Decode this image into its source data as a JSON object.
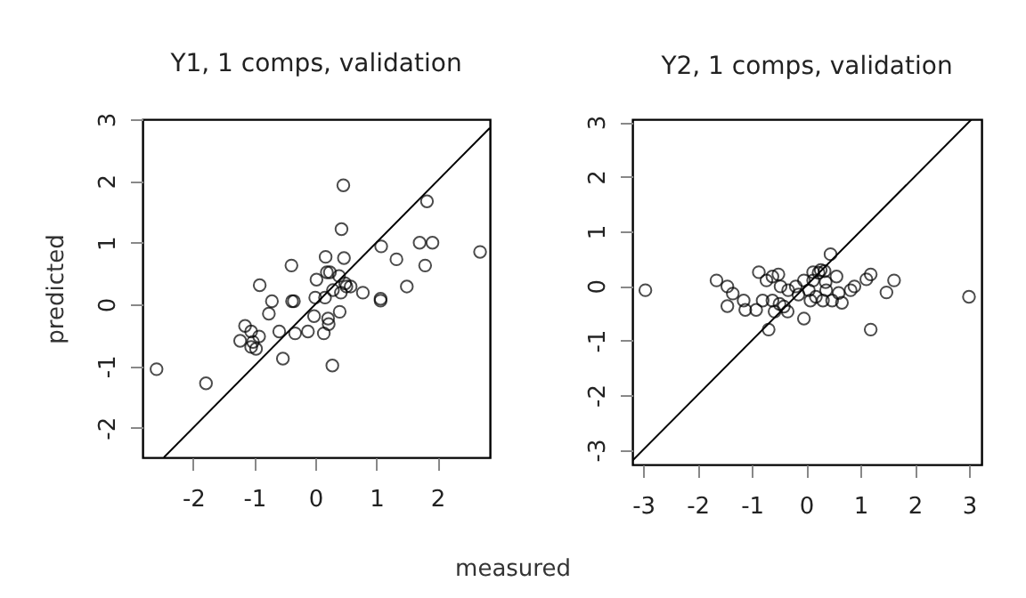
{
  "chart_data": [
    {
      "type": "scatter",
      "title": "Y1, 1 comps, validation",
      "ylabel": "predicted",
      "xlabel": "measured",
      "grid": false,
      "xlim": [
        -2.83,
        2.86
      ],
      "ylim": [
        -2.48,
        3.0
      ],
      "xticks": [
        -2,
        -1,
        0,
        1,
        2
      ],
      "yticks": [
        -2,
        -1,
        0,
        1,
        2,
        3
      ],
      "series": [
        {
          "marker": "circle",
          "color": "#000000",
          "x": [
            -2.6,
            -1.79,
            -1.23,
            -1.15,
            -1.05,
            -1.02,
            -0.97,
            -0.92,
            -1.05,
            -0.91,
            -0.76,
            -0.71,
            -0.59,
            -0.53,
            -0.39,
            -0.38,
            -0.35,
            -0.33,
            -0.12,
            -0.02,
            0.0,
            0.02,
            0.14,
            0.16,
            0.17,
            0.19,
            0.24,
            0.21,
            0.22,
            0.28,
            0.29,
            0.39,
            0.4,
            0.42,
            0.43,
            0.46,
            0.47,
            0.49,
            0.51,
            0.58,
            0.78,
            1.07,
            1.07,
            1.08,
            1.33,
            1.5,
            1.71,
            1.8,
            1.83,
            1.92,
            2.7
          ],
          "values": [
            -1.05,
            -1.28,
            -0.59,
            -0.35,
            -0.44,
            -0.61,
            -0.72,
            -0.52,
            -0.69,
            0.31,
            -0.15,
            0.05,
            -0.44,
            -0.88,
            0.63,
            0.05,
            0.05,
            -0.47,
            -0.44,
            -0.19,
            0.11,
            0.4,
            -0.47,
            0.11,
            0.77,
            0.52,
            0.52,
            -0.23,
            -0.32,
            -0.99,
            0.23,
            0.46,
            -0.12,
            0.19,
            1.22,
            1.93,
            0.75,
            0.34,
            0.29,
            0.29,
            0.19,
            0.09,
            0.06,
            0.94,
            0.73,
            0.29,
            1.0,
            0.63,
            1.67,
            1.0,
            0.85
          ]
        },
        {
          "type": "line",
          "marker": "none",
          "color": "#000000",
          "line_style": "solid",
          "x": [
            -2.48,
            2.86
          ],
          "values": [
            -2.48,
            2.86
          ]
        }
      ]
    },
    {
      "type": "scatter",
      "title": "Y2, 1 comps, validation",
      "grid": false,
      "xlim": [
        -3.2,
        3.23
      ],
      "ylim": [
        -3.27,
        3.05
      ],
      "xticks": [
        -3,
        -2,
        -1,
        0,
        1,
        2,
        3
      ],
      "yticks": [
        -3,
        -2,
        -1,
        0,
        1,
        2,
        3
      ],
      "series": [
        {
          "marker": "circle",
          "color": "#000000",
          "x": [
            -2.96,
            -1.65,
            -1.45,
            -1.35,
            -1.45,
            -1.15,
            -1.12,
            -0.92,
            -0.87,
            -0.8,
            -0.73,
            -0.69,
            -0.62,
            -0.62,
            -0.58,
            -0.51,
            -0.49,
            -0.47,
            -0.41,
            -0.34,
            -0.33,
            -0.19,
            -0.14,
            -0.04,
            -0.04,
            0.05,
            0.08,
            0.13,
            0.13,
            0.18,
            0.23,
            0.27,
            0.31,
            0.34,
            0.36,
            0.37,
            0.45,
            0.48,
            0.56,
            0.6,
            0.66,
            0.82,
            0.89,
            1.11,
            1.19,
            1.19,
            1.48,
            1.62,
            3.0
          ],
          "values": [
            -0.08,
            0.1,
            -0.01,
            -0.14,
            -0.37,
            -0.27,
            -0.44,
            -0.44,
            0.25,
            -0.27,
            0.1,
            -0.8,
            0.17,
            -0.27,
            -0.47,
            0.21,
            -0.33,
            -0.01,
            -0.38,
            -0.47,
            -0.08,
            -0.01,
            -0.16,
            -0.6,
            0.1,
            -0.08,
            -0.27,
            0.25,
            0.1,
            -0.2,
            0.24,
            0.29,
            -0.27,
            0.27,
            0.07,
            -0.08,
            0.58,
            -0.27,
            0.17,
            -0.13,
            -0.31,
            -0.08,
            -0.01,
            0.12,
            0.21,
            -0.8,
            -0.12,
            0.1,
            -0.2
          ]
        },
        {
          "type": "line",
          "marker": "none",
          "color": "#000000",
          "line_style": "solid",
          "x": [
            -3.2,
            3.05
          ],
          "values": [
            -3.2,
            3.05
          ]
        }
      ]
    }
  ]
}
